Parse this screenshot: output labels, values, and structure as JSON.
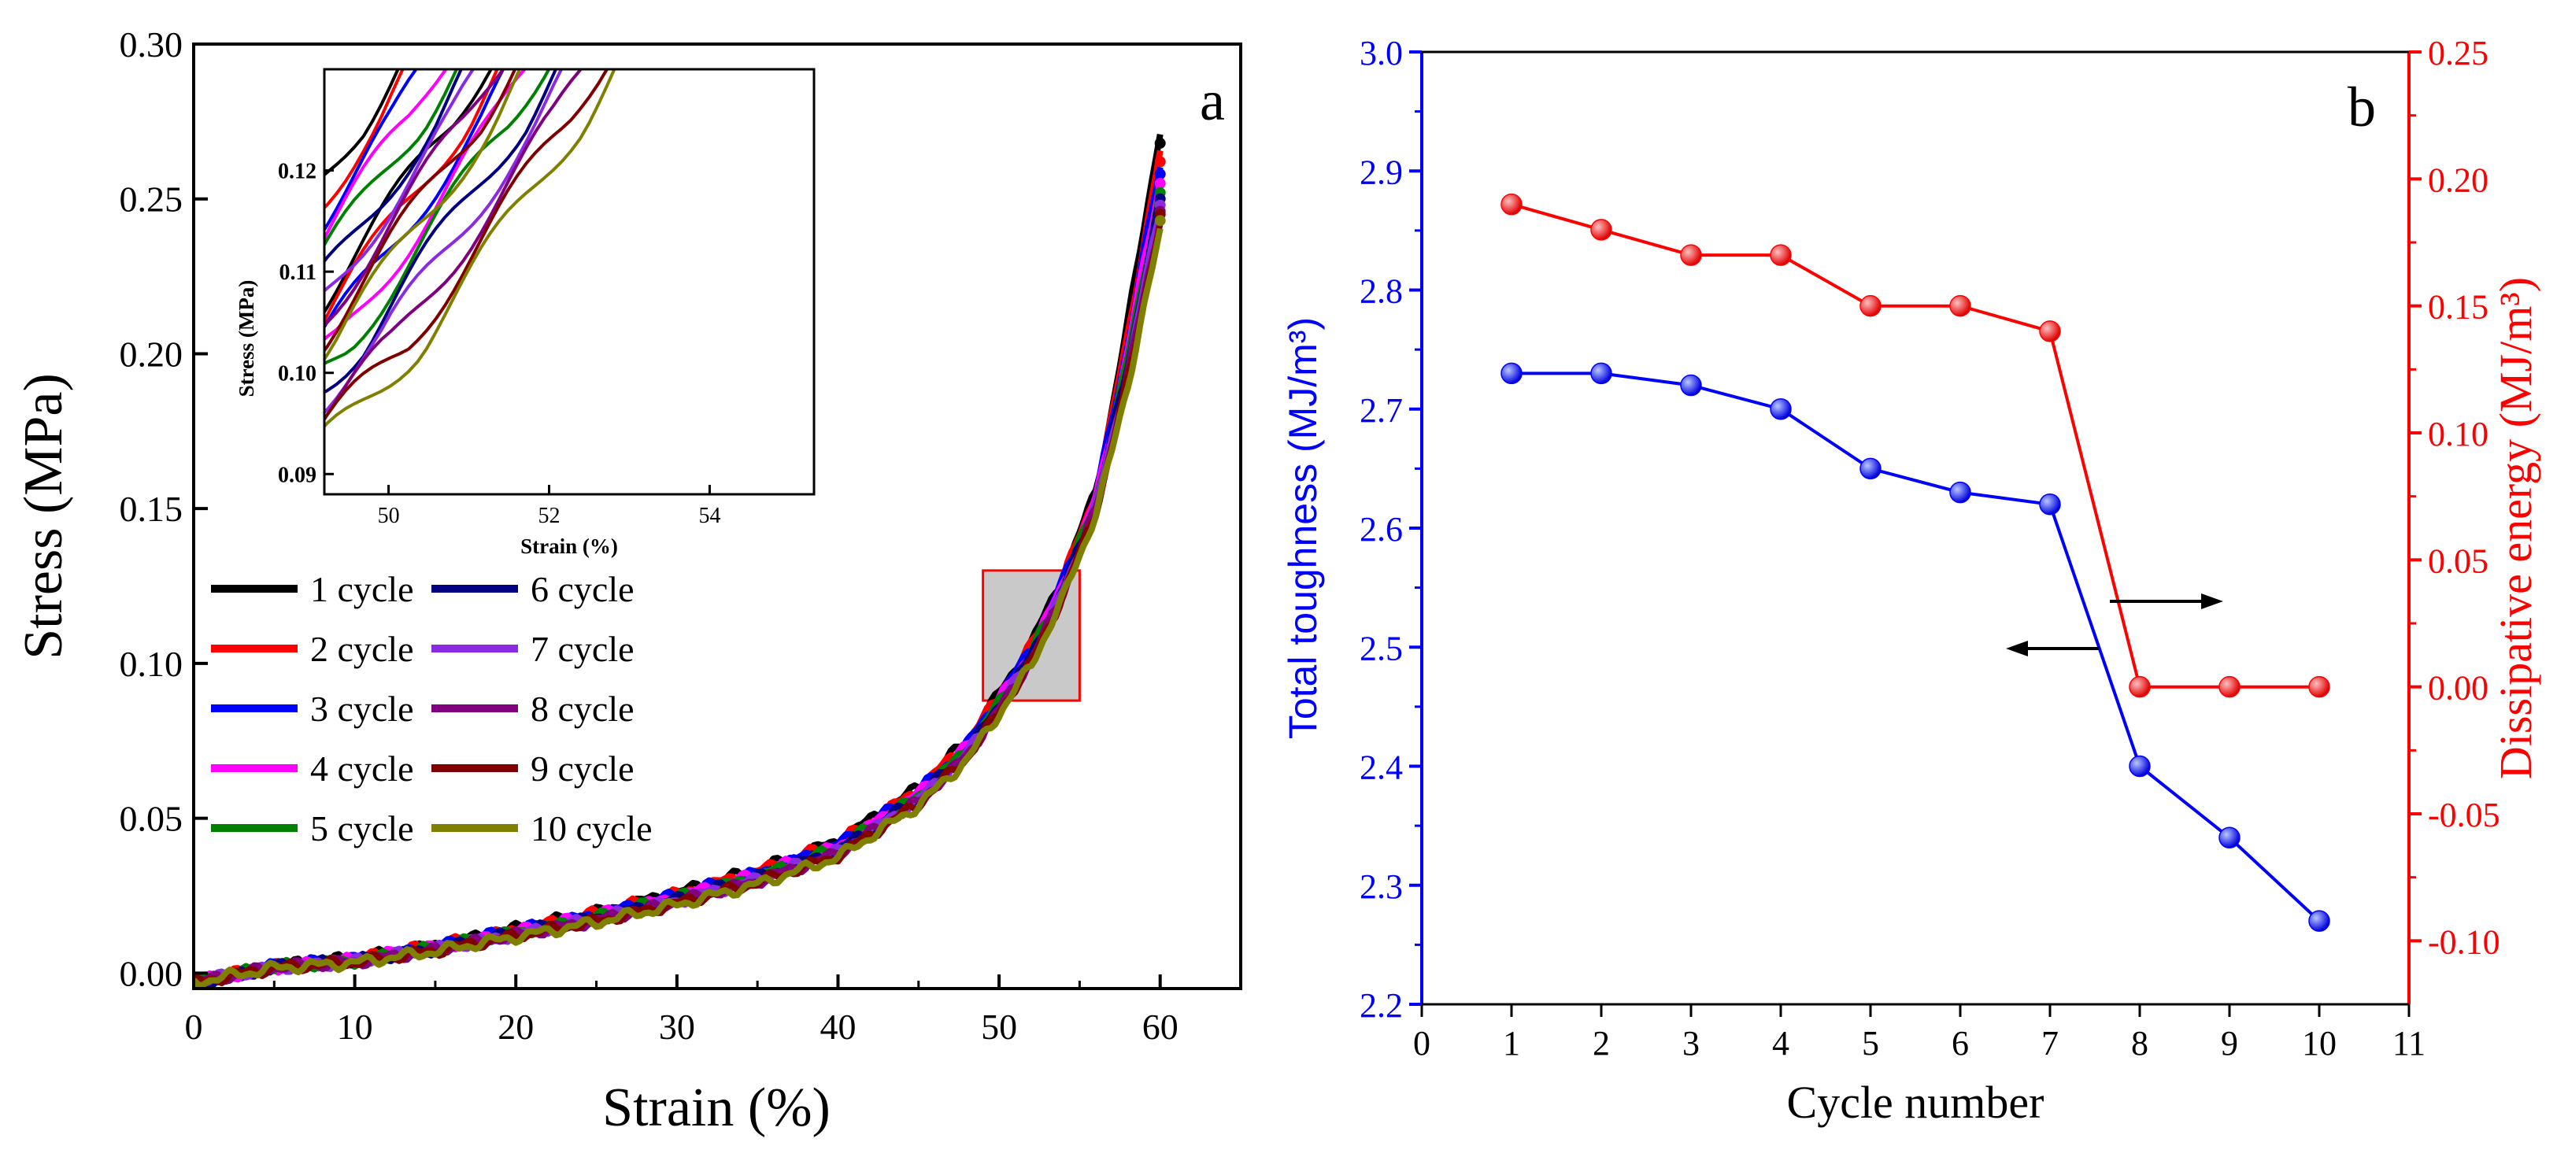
{
  "panel_a": {
    "letter": "a",
    "xlabel": "Strain (%)",
    "ylabel": "Stress (MPa)",
    "xticks": [
      "0",
      "10",
      "20",
      "30",
      "40",
      "50",
      "60"
    ],
    "yticks": [
      "0.00",
      "0.05",
      "0.10",
      "0.15",
      "0.20",
      "0.25",
      "0.30"
    ],
    "inset": {
      "xlabel": "Strain (%)",
      "ylabel": "Stress (MPa)",
      "xticks": [
        "50",
        "52",
        "54"
      ],
      "yticks": [
        "0.09",
        "0.10",
        "0.11",
        "0.12"
      ]
    },
    "legend": [
      {
        "label": "1 cycle",
        "color": "#000000"
      },
      {
        "label": "2 cycle",
        "color": "#ff0000"
      },
      {
        "label": "3 cycle",
        "color": "#0000ff"
      },
      {
        "label": "4 cycle",
        "color": "#ff00ff"
      },
      {
        "label": "5 cycle",
        "color": "#008000"
      },
      {
        "label": "6 cycle",
        "color": "#000080"
      },
      {
        "label": "7 cycle",
        "color": "#8a2be2"
      },
      {
        "label": "8 cycle",
        "color": "#800080"
      },
      {
        "label": "9 cycle",
        "color": "#800000"
      },
      {
        "label": "10 cycle",
        "color": "#808000"
      }
    ]
  },
  "panel_b": {
    "letter": "b",
    "xlabel": "Cycle number",
    "ylabel_left": "Total toughness (MJ/m³)",
    "ylabel_right": "Dissipative energy (MJ/m³)",
    "xticks": [
      "0",
      "1",
      "2",
      "3",
      "4",
      "5",
      "6",
      "7",
      "8",
      "9",
      "10",
      "11"
    ],
    "yticks_left": [
      "2.2",
      "2.3",
      "2.4",
      "2.5",
      "2.6",
      "2.7",
      "2.8",
      "2.9",
      "3.0"
    ],
    "yticks_right": [
      "-0.10",
      "-0.05",
      "0.00",
      "0.05",
      "0.10",
      "0.15",
      "0.20",
      "0.25"
    ]
  },
  "chart_data": [
    {
      "type": "line",
      "title": "",
      "xlabel": "Strain (%)",
      "ylabel": "Stress (MPa)",
      "xlim": [
        0,
        65
      ],
      "ylim": [
        -0.005,
        0.3
      ],
      "grid": false,
      "legend_placement": "left",
      "series": [
        {
          "name": "1 cycle",
          "color": "#000000"
        },
        {
          "name": "2 cycle",
          "color": "#ff0000"
        },
        {
          "name": "3 cycle",
          "color": "#0000ff"
        },
        {
          "name": "4 cycle",
          "color": "#ff00ff"
        },
        {
          "name": "5 cycle",
          "color": "#008000"
        },
        {
          "name": "6 cycle",
          "color": "#000080"
        },
        {
          "name": "7 cycle",
          "color": "#8a2be2"
        },
        {
          "name": "8 cycle",
          "color": "#800080"
        },
        {
          "name": "9 cycle",
          "color": "#800000"
        },
        {
          "name": "10 cycle",
          "color": "#808000"
        }
      ],
      "base_curve": {
        "x": [
          0,
          5,
          10,
          15,
          20,
          25,
          30,
          35,
          40,
          45,
          48,
          50,
          52,
          54,
          56,
          57,
          58,
          59,
          60
        ],
        "y": [
          -0.003,
          0.002,
          0.004,
          0.008,
          0.013,
          0.018,
          0.024,
          0.031,
          0.04,
          0.057,
          0.072,
          0.087,
          0.103,
          0.125,
          0.152,
          0.175,
          0.2,
          0.228,
          0.255
        ]
      },
      "peak_stress": [
        0.268,
        0.262,
        0.258,
        0.255,
        0.252,
        0.25,
        0.248,
        0.246,
        0.245,
        0.243
      ],
      "highlight_box": {
        "x": [
          49,
          55
        ],
        "y": [
          0.088,
          0.13
        ]
      },
      "inset": {
        "xlabel": "Strain (%)",
        "ylabel": "Stress (MPa)",
        "xlim": [
          49.2,
          55.3
        ],
        "ylim": [
          0.088,
          0.13
        ]
      }
    },
    {
      "type": "line",
      "title": "",
      "xlabel": "Cycle number",
      "xlim": [
        0,
        11
      ],
      "series": [
        {
          "name": "Total toughness",
          "axis": "left",
          "color": "#0000ff",
          "ylim": [
            2.2,
            3.0
          ],
          "x": [
            1,
            2,
            3,
            4,
            5,
            6,
            7,
            8,
            9,
            10
          ],
          "values": [
            2.73,
            2.73,
            2.72,
            2.7,
            2.65,
            2.63,
            2.62,
            2.4,
            2.34,
            2.27
          ]
        },
        {
          "name": "Dissipative energy",
          "axis": "right",
          "color": "#ff0000",
          "ylim": [
            -0.125,
            0.25
          ],
          "x": [
            1,
            2,
            3,
            4,
            5,
            6,
            7,
            8,
            9,
            10
          ],
          "values": [
            0.19,
            0.18,
            0.17,
            0.17,
            0.15,
            0.15,
            0.14,
            0.0,
            0.0,
            0.0
          ]
        }
      ],
      "annotations": [
        "arrow pointing right to Dissipative energy axis",
        "arrow pointing left to Total toughness axis"
      ]
    }
  ]
}
